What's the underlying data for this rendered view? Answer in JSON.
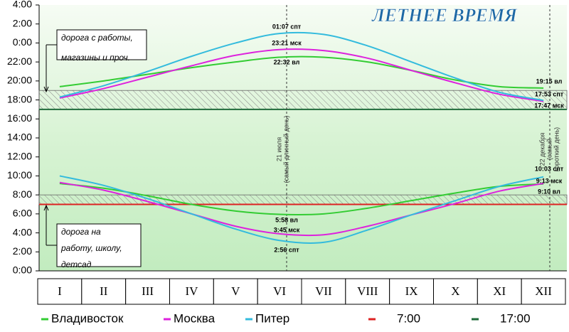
{
  "chart_data": {
    "type": "line",
    "title": "ЛЕТНЕЕ ВРЕМЯ",
    "categories": [
      "I",
      "II",
      "III",
      "IV",
      "V",
      "VI",
      "VII",
      "VIII",
      "IX",
      "X",
      "XI",
      "XII"
    ],
    "series": [
      {
        "name": "Владивосток",
        "color": "#33cc33",
        "sunset": [
          19.4,
          20.0,
          20.7,
          21.4,
          22.0,
          22.5,
          22.5,
          22.0,
          21.1,
          20.1,
          19.4,
          19.25
        ],
        "sunrise": [
          9.2,
          8.7,
          7.9,
          7.0,
          6.3,
          5.95,
          6.0,
          6.6,
          7.4,
          8.2,
          8.9,
          9.15
        ]
      },
      {
        "name": "Москва",
        "color": "#dd22dd",
        "sunset": [
          18.2,
          19.2,
          20.4,
          21.6,
          22.7,
          23.3,
          23.2,
          22.4,
          21.1,
          19.8,
          18.6,
          17.85
        ],
        "sunrise": [
          9.3,
          8.5,
          7.3,
          6.0,
          4.7,
          3.9,
          3.8,
          4.7,
          5.9,
          7.1,
          8.4,
          9.2
        ]
      },
      {
        "name": "Питер",
        "color": "#33bbdd",
        "sunset": [
          18.3,
          19.5,
          21.0,
          22.6,
          24.0,
          25.0,
          24.9,
          23.7,
          22.0,
          20.3,
          18.8,
          17.95
        ],
        "sunrise": [
          10.0,
          9.0,
          7.6,
          6.0,
          4.4,
          3.2,
          3.0,
          4.3,
          5.9,
          7.4,
          8.9,
          9.9
        ]
      }
    ],
    "reference_lines": [
      {
        "name": "7:00",
        "value": 7,
        "color": "#dd2222"
      },
      {
        "name": "17:00",
        "value": 17,
        "color": "#1f6b3a"
      }
    ],
    "bands": [
      {
        "from": 17,
        "to": 19
      },
      {
        "from": 7,
        "to": 8
      }
    ],
    "ylim": [
      0,
      28
    ],
    "yticks": [
      {
        "value": 0,
        "label": "0:00"
      },
      {
        "value": 2,
        "label": "2:00"
      },
      {
        "value": 4,
        "label": "4:00"
      },
      {
        "value": 6,
        "label": "6:00"
      },
      {
        "value": 8,
        "label": "8:00"
      },
      {
        "value": 10,
        "label": "10:00"
      },
      {
        "value": 12,
        "label": "12:00"
      },
      {
        "value": 14,
        "label": "14:00"
      },
      {
        "value": 16,
        "label": "16:00"
      },
      {
        "value": 18,
        "label": "18:00"
      },
      {
        "value": 20,
        "label": "20:00"
      },
      {
        "value": 22,
        "label": "22:00"
      },
      {
        "value": 24,
        "label": "0:00"
      },
      {
        "value": 26,
        "label": "2:00"
      },
      {
        "value": 28,
        "label": "4:00"
      }
    ],
    "annotations": [
      "01:07 спт",
      "23:21 мск",
      "22:32 вл",
      "19:15 вл",
      "17:53 спт",
      "17:47 мск",
      "10:03 спт",
      "9:13 мск",
      "9:10 вл",
      "5:58 вл",
      "3:45 мск",
      "2:56 спт"
    ],
    "markers": [
      {
        "lines": [
          "21 июля",
          "(самый длинный день)"
        ]
      },
      {
        "lines": [
          "22 декабря",
          "(самый",
          "короткий день)"
        ]
      }
    ],
    "notes": [
      {
        "lines": [
          "дорога с работы,",
          "магазины и проч."
        ]
      },
      {
        "lines": [
          "дорога на",
          "работу, школу,",
          "детсад"
        ]
      }
    ]
  }
}
